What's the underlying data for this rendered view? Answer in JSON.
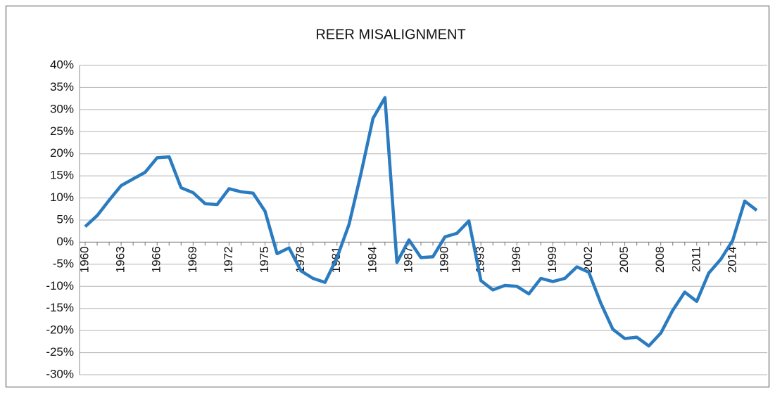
{
  "chart_data": {
    "type": "line",
    "title": "REER  MISALIGNMENT",
    "categories": [
      "1960",
      null,
      null,
      "1963",
      null,
      null,
      "1966",
      null,
      null,
      "1969",
      null,
      null,
      "1972",
      null,
      null,
      "1975",
      null,
      null,
      "1978",
      null,
      null,
      "1981",
      null,
      null,
      "1984",
      null,
      null,
      "1987",
      null,
      null,
      "1990",
      null,
      null,
      "1993",
      null,
      null,
      "1996",
      null,
      null,
      "1999",
      null,
      null,
      "2002",
      null,
      null,
      "2005",
      null,
      null,
      "2008",
      null,
      null,
      "2011",
      null,
      null,
      "2014",
      null,
      null
    ],
    "series": [
      {
        "name": "REER misalignment",
        "color": "#2a7bbf",
        "values": [
          3.5,
          6,
          9.5,
          12.8,
          14.3,
          15.8,
          19.1,
          19.3,
          12.3,
          11.2,
          8.7,
          8.5,
          12.1,
          11.4,
          11.1,
          7,
          -2.6,
          -1.3,
          -6.5,
          -8.2,
          -9.1,
          -3.5,
          4,
          15.5,
          28,
          32.7,
          -4.6,
          0.5,
          -3.5,
          -3.3,
          1.2,
          2,
          4.8,
          -8.7,
          -10.8,
          -9.8,
          -10,
          -11.7,
          -8.2,
          -8.9,
          -8.2,
          -5.6,
          -6.8,
          -13.8,
          -19.7,
          -21.8,
          -21.5,
          -23.5,
          -20.6,
          -15.4,
          -11.3,
          -13.4,
          -7,
          -3.9,
          0.4,
          9.3,
          7.2
        ]
      }
    ],
    "ylim": [
      -30,
      40
    ],
    "yticks": [
      {
        "value": -30,
        "label": "-30%"
      },
      {
        "value": -25,
        "label": "-25%"
      },
      {
        "value": -20,
        "label": "-20%"
      },
      {
        "value": -15,
        "label": "-15%"
      },
      {
        "value": -10,
        "label": "-10%"
      },
      {
        "value": -5,
        "label": "-5%"
      },
      {
        "value": 0,
        "label": "0%"
      },
      {
        "value": 5,
        "label": "5%"
      },
      {
        "value": 10,
        "label": "10%"
      },
      {
        "value": 15,
        "label": "15%"
      },
      {
        "value": 20,
        "label": "20%"
      },
      {
        "value": 25,
        "label": "25%"
      },
      {
        "value": 30,
        "label": "30%"
      },
      {
        "value": 35,
        "label": "35%"
      },
      {
        "value": 40,
        "label": "40%"
      }
    ],
    "grid": true
  }
}
